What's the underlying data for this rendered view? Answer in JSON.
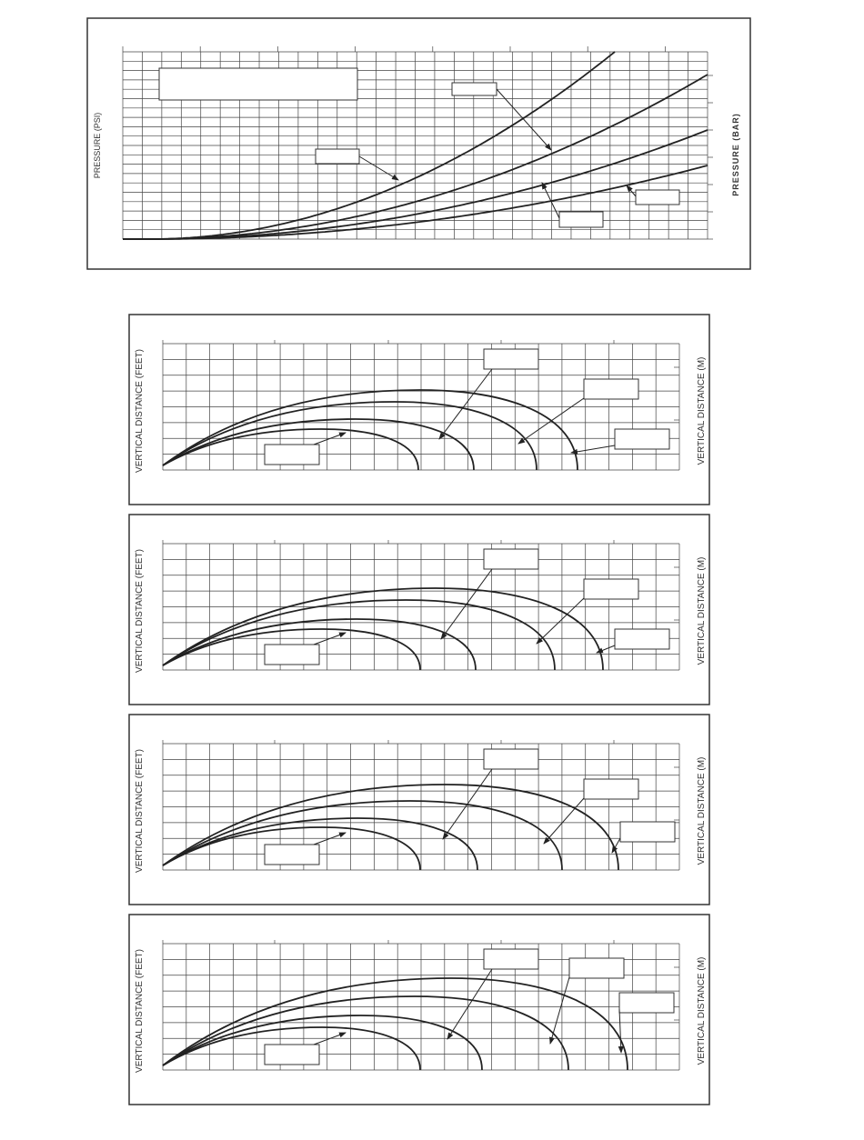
{
  "top_chart": {
    "y_label": "PRESSURE (PSI)",
    "y2_label": "PRESSURE (BAR)"
  },
  "trajectory_charts": [
    {
      "y_label": "VERTICAL DISTANCE (FEET)",
      "y2_label": "VERTICAL DISTANCE (M)"
    },
    {
      "y_label": "VERTICAL DISTANCE (FEET)",
      "y2_label": "VERTICAL DISTANCE (M)"
    },
    {
      "y_label": "VERTICAL DISTANCE (FEET)",
      "y2_label": "VERTICAL DISTANCE (M)"
    },
    {
      "y_label": "VERTICAL DISTANCE (FEET)",
      "y2_label": "VERTICAL DISTANCE (M)"
    }
  ]
}
